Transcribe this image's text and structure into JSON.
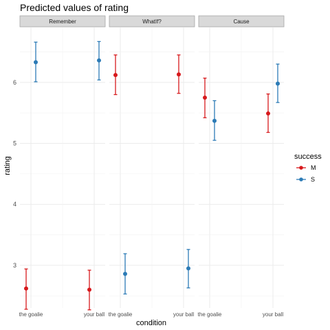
{
  "chart_data": {
    "type": "scatter",
    "title": "Predicted values of rating",
    "xlabel": "condition",
    "ylabel": "rating",
    "yticks": [
      3,
      4,
      5,
      6
    ],
    "ylim": [
      2.3,
      6.9
    ],
    "x_categories": [
      "the goalie",
      "your ball"
    ],
    "legend": {
      "title": "success",
      "position": "right",
      "entries": [
        {
          "name": "M",
          "color": "#d7191c"
        },
        {
          "name": "S",
          "color": "#2c7bb6"
        }
      ]
    },
    "grid": true,
    "panels": [
      {
        "label": "Remember",
        "points": [
          {
            "condition": "the goalie",
            "success": "M",
            "value": 2.62,
            "low": 2.28,
            "high": 2.94
          },
          {
            "condition": "the goalie",
            "success": "S",
            "value": 6.33,
            "low": 6.01,
            "high": 6.66
          },
          {
            "condition": "your ball",
            "success": "M",
            "value": 2.6,
            "low": 2.27,
            "high": 2.92
          },
          {
            "condition": "your ball",
            "success": "S",
            "value": 6.36,
            "low": 6.04,
            "high": 6.67
          }
        ]
      },
      {
        "label": "WhatIf?",
        "points": [
          {
            "condition": "the goalie",
            "success": "M",
            "value": 6.12,
            "low": 5.8,
            "high": 6.45
          },
          {
            "condition": "the goalie",
            "success": "S",
            "value": 2.86,
            "low": 2.53,
            "high": 3.19
          },
          {
            "condition": "your ball",
            "success": "M",
            "value": 6.13,
            "low": 5.82,
            "high": 6.45
          },
          {
            "condition": "your ball",
            "success": "S",
            "value": 2.95,
            "low": 2.63,
            "high": 3.26
          }
        ]
      },
      {
        "label": "Cause",
        "points": [
          {
            "condition": "the goalie",
            "success": "M",
            "value": 5.75,
            "low": 5.42,
            "high": 6.07
          },
          {
            "condition": "the goalie",
            "success": "S",
            "value": 5.37,
            "low": 5.05,
            "high": 5.7
          },
          {
            "condition": "your ball",
            "success": "M",
            "value": 5.49,
            "low": 5.18,
            "high": 5.81
          },
          {
            "condition": "your ball",
            "success": "S",
            "value": 5.98,
            "low": 5.67,
            "high": 6.3
          }
        ]
      }
    ]
  }
}
